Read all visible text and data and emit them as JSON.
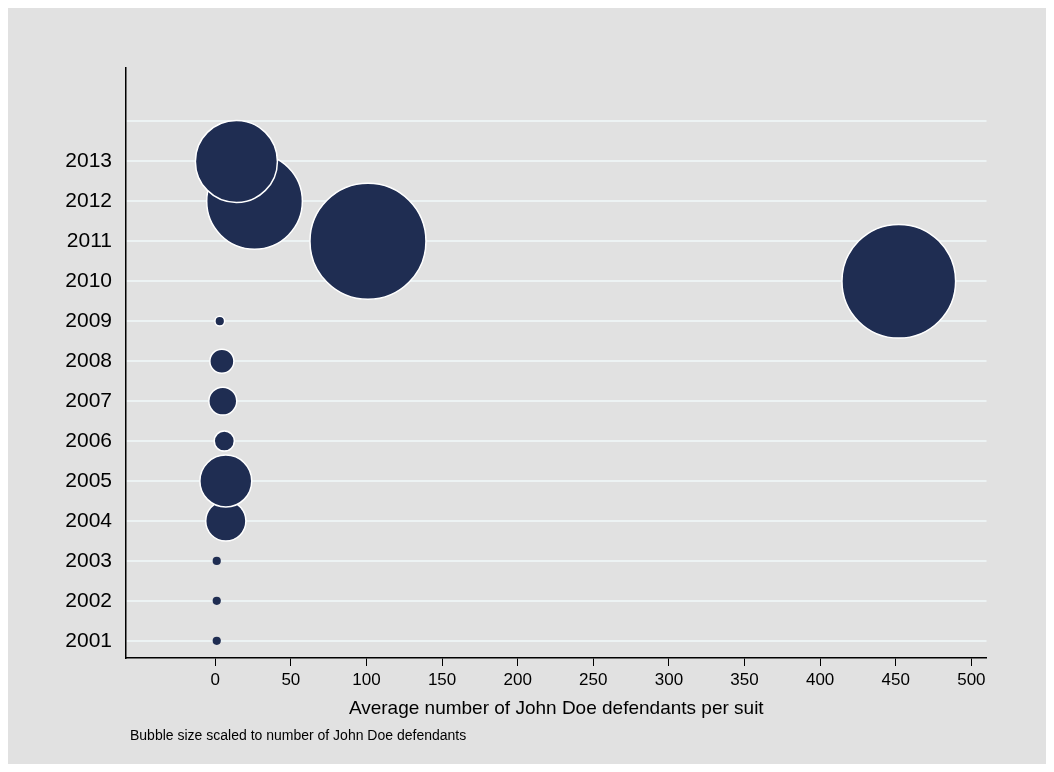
{
  "chart_data": {
    "type": "bubble",
    "xlabel": "Average number of John Doe defendants per suit",
    "annotations": [
      "Bubble size scaled to number of John Doe defendants"
    ],
    "x": [
      1,
      1,
      1,
      7,
      7,
      6,
      5,
      4.4,
      3,
      452,
      101,
      26,
      14
    ],
    "values": [
      2001,
      2002,
      2003,
      2004,
      2005,
      2006,
      2007,
      2008,
      2009,
      2010,
      2011,
      2012,
      2013
    ],
    "sizes": [
      0.005,
      0.005,
      0.005,
      0.12,
      0.2,
      0.03,
      0.058,
      0.043,
      0.007,
      0.96,
      1,
      0.68,
      0.5
    ],
    "color": "#1f2d52",
    "xlim": [
      -59,
      510
    ],
    "xticks": [
      0,
      50,
      100,
      150,
      200,
      250,
      300,
      350,
      400,
      450,
      500
    ],
    "ylim": [
      2000.57,
      2015.35
    ],
    "yticks": [
      2001,
      2002,
      2003,
      2004,
      2005,
      2006,
      2007,
      2008,
      2009,
      2010,
      2011,
      2012,
      2013,
      {
        "value": 2014,
        "label": null
      }
    ],
    "grid": "y",
    "legend": false
  }
}
